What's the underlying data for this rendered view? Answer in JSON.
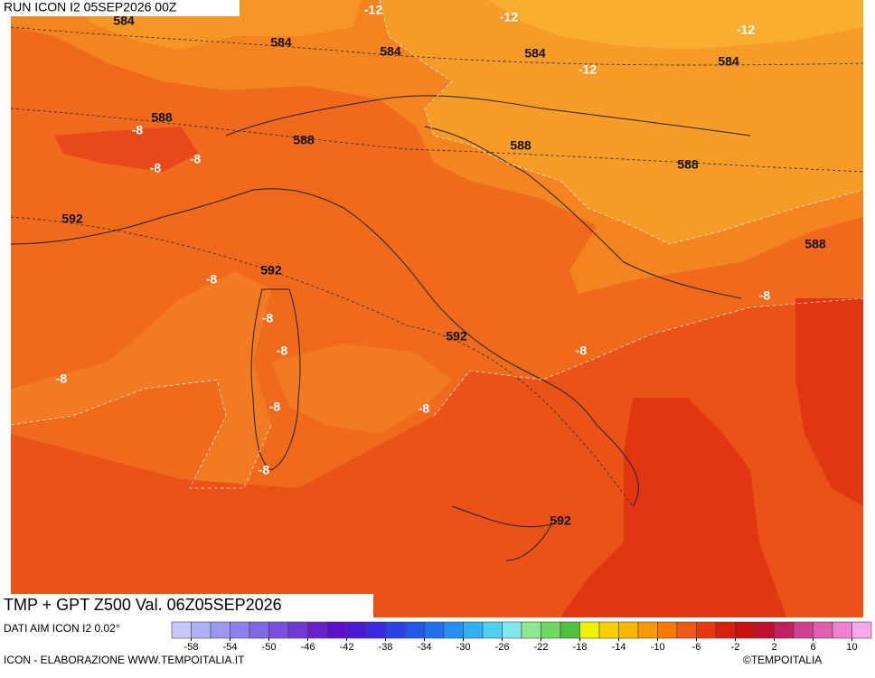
{
  "header": {
    "run": "RUN ICON I2 05SEP2026 00Z"
  },
  "map": {
    "gpt_labels": [
      "584",
      "584",
      "584",
      "584",
      "584",
      "588",
      "588",
      "588",
      "588",
      "588",
      "592",
      "592",
      "592",
      "592"
    ],
    "tmp_labels": [
      "-12",
      "-12",
      "-12",
      "-12",
      "-8",
      "-8",
      "-8",
      "-8",
      "-8",
      "-8",
      "-8",
      "-8",
      "-8",
      "-8",
      "-8",
      "-8"
    ]
  },
  "footer": {
    "title": "TMP + GPT Z500 Val. 06Z05SEP2026",
    "source": "DATI AIM ICON I2 0.02°",
    "credit": "ICON - ELABORAZIONE WWW.TEMPOITALIA.IT",
    "copyright": "©TEMPOITALIA"
  },
  "colorbar": {
    "range": [
      -60,
      12
    ],
    "ticks": [
      -58,
      -54,
      -50,
      -46,
      -42,
      -38,
      -34,
      -30,
      -26,
      -22,
      -18,
      -14,
      -10,
      -6,
      -2,
      2,
      6,
      10
    ],
    "colors": [
      "#c8c8f8",
      "#b0b0f4",
      "#9c98f0",
      "#8c80ec",
      "#8068e4",
      "#7850dc",
      "#7038d4",
      "#6820cc",
      "#5c10cc",
      "#4c18d8",
      "#3c28e0",
      "#2c40e8",
      "#2058e8",
      "#2070f0",
      "#2890f0",
      "#30b0f0",
      "#50d0f0",
      "#80e8f0",
      "#90e890",
      "#70d860",
      "#50c040",
      "#f0f000",
      "#f8d000",
      "#f8b800",
      "#f89800",
      "#f87800",
      "#f05818",
      "#e83810",
      "#d82010",
      "#c81010",
      "#c01030",
      "#c02060",
      "#d04090",
      "#e060b0",
      "#f080d0",
      "#f8a8e8"
    ]
  }
}
